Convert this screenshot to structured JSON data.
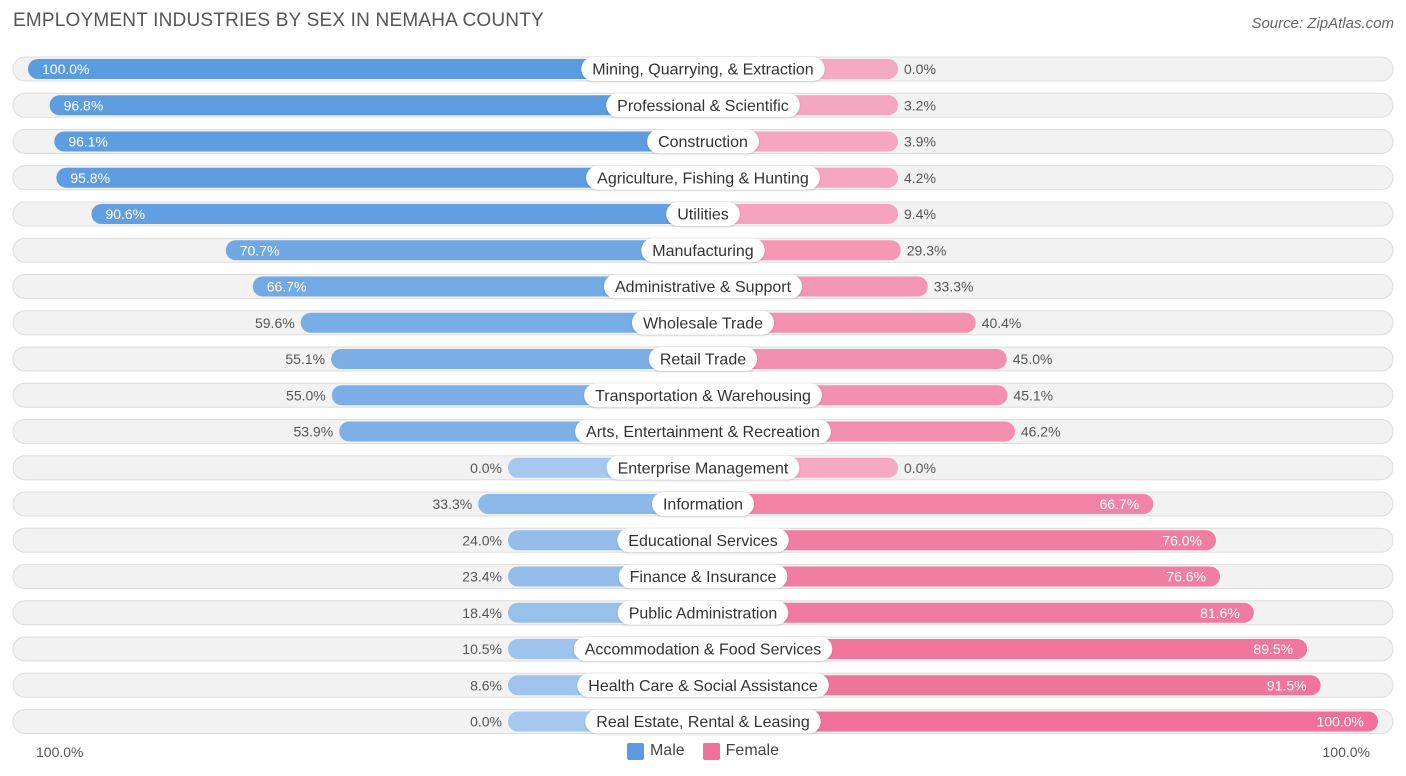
{
  "header": {
    "title": "EMPLOYMENT INDUSTRIES BY SEX IN NEMAHA COUNTY",
    "source": "Source: ZipAtlas.com"
  },
  "axis": {
    "left_label": "100.0%",
    "right_label": "100.0%"
  },
  "legend": {
    "male": "Male",
    "female": "Female"
  },
  "colors": {
    "male_strong": "#5b9bdf",
    "male_light": "#a6c8ee",
    "female_strong": "#f07099",
    "female_light": "#f5a8c2",
    "row_bg": "#f2f2f2",
    "row_border": "#dddddd"
  },
  "chart_data": {
    "type": "bar",
    "orientation": "horizontal-diverging",
    "title": "EMPLOYMENT INDUSTRIES BY SEX IN NEMAHA COUNTY",
    "xlim": [
      0,
      100
    ],
    "series": [
      {
        "name": "Male",
        "values": [
          100.0,
          96.8,
          96.1,
          95.8,
          90.6,
          70.7,
          66.7,
          59.6,
          55.1,
          55.0,
          53.9,
          0.0,
          33.3,
          24.0,
          23.4,
          18.4,
          10.5,
          8.6,
          0.0
        ]
      },
      {
        "name": "Female",
        "values": [
          0.0,
          3.2,
          3.9,
          4.2,
          9.4,
          29.3,
          33.3,
          40.4,
          45.0,
          45.1,
          46.2,
          0.0,
          66.7,
          76.0,
          76.6,
          81.6,
          89.5,
          91.5,
          100.0
        ]
      }
    ],
    "categories": [
      "Mining, Quarrying, & Extraction",
      "Professional & Scientific",
      "Construction",
      "Agriculture, Fishing & Hunting",
      "Utilities",
      "Manufacturing",
      "Administrative & Support",
      "Wholesale Trade",
      "Retail Trade",
      "Transportation & Warehousing",
      "Arts, Entertainment & Recreation",
      "Enterprise Management",
      "Information",
      "Educational Services",
      "Finance & Insurance",
      "Public Administration",
      "Accommodation & Food Services",
      "Health Care & Social Assistance",
      "Real Estate, Rental & Leasing"
    ],
    "male_labels": [
      "100.0%",
      "96.8%",
      "96.1%",
      "95.8%",
      "90.6%",
      "70.7%",
      "66.7%",
      "59.6%",
      "55.1%",
      "55.0%",
      "53.9%",
      "0.0%",
      "33.3%",
      "24.0%",
      "23.4%",
      "18.4%",
      "10.5%",
      "8.6%",
      "0.0%"
    ],
    "female_labels": [
      "0.0%",
      "3.2%",
      "3.9%",
      "4.2%",
      "9.4%",
      "29.3%",
      "33.3%",
      "40.4%",
      "45.0%",
      "45.1%",
      "46.2%",
      "0.0%",
      "66.7%",
      "76.0%",
      "76.6%",
      "81.6%",
      "89.5%",
      "91.5%",
      "100.0%"
    ]
  }
}
